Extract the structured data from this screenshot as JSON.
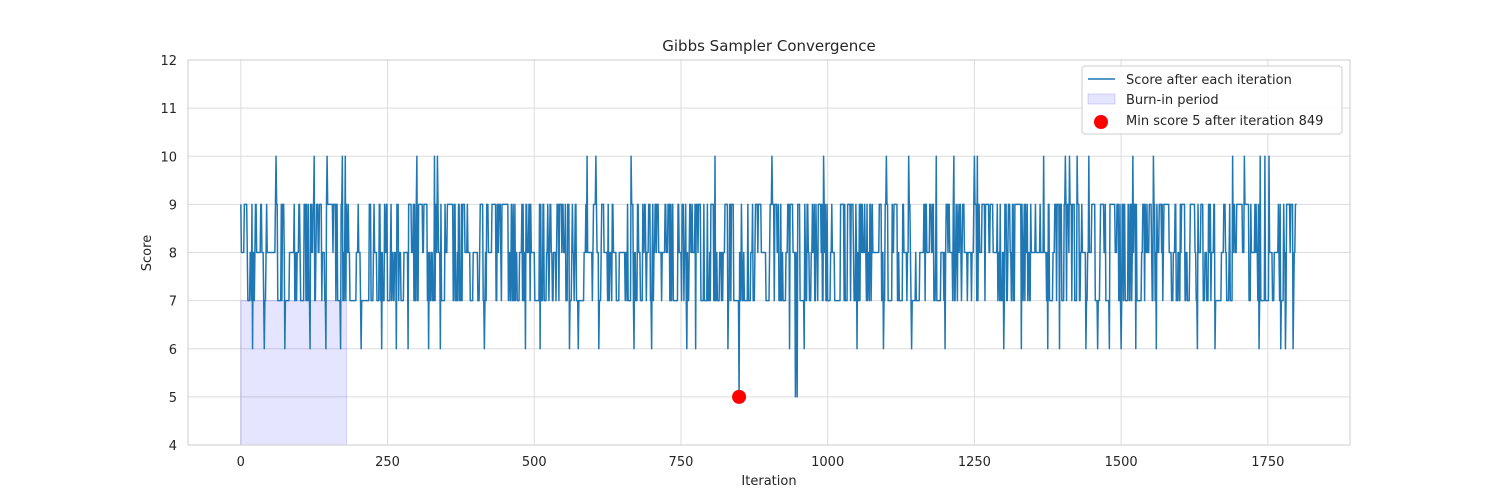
{
  "chart_data": {
    "type": "line",
    "title": "Gibbs Sampler Convergence",
    "xlabel": "Iteration",
    "ylabel": "Score",
    "xlim": [
      -90,
      1890
    ],
    "ylim": [
      4,
      12
    ],
    "x_ticks": [
      0,
      250,
      500,
      750,
      1000,
      1250,
      1500,
      1750
    ],
    "y_ticks": [
      4,
      5,
      6,
      7,
      8,
      9,
      10,
      11,
      12
    ],
    "grid": true,
    "legend_position": "top-right",
    "n_iterations": 1800,
    "series": [
      {
        "name": "Score after each iteration",
        "color": "#1f77b4",
        "baseline_values": [
          7,
          8,
          9
        ],
        "spikes": [
          {
            "x": 60,
            "y": 10
          },
          {
            "x": 125,
            "y": 10
          },
          {
            "x": 147,
            "y": 10
          },
          {
            "x": 173,
            "y": 10
          },
          {
            "x": 178,
            "y": 10
          },
          {
            "x": 300,
            "y": 10
          },
          {
            "x": 330,
            "y": 10
          },
          {
            "x": 335,
            "y": 10
          },
          {
            "x": 560,
            "y": 10
          },
          {
            "x": 590,
            "y": 10
          },
          {
            "x": 605,
            "y": 10
          },
          {
            "x": 665,
            "y": 10
          },
          {
            "x": 700,
            "y": 10
          },
          {
            "x": 808,
            "y": 10
          },
          {
            "x": 905,
            "y": 10
          },
          {
            "x": 993,
            "y": 10
          },
          {
            "x": 1100,
            "y": 10
          },
          {
            "x": 1138,
            "y": 10
          },
          {
            "x": 1185,
            "y": 10
          },
          {
            "x": 1215,
            "y": 10
          },
          {
            "x": 1250,
            "y": 10
          },
          {
            "x": 1255,
            "y": 10
          },
          {
            "x": 1330,
            "y": 10
          },
          {
            "x": 1368,
            "y": 10
          },
          {
            "x": 1405,
            "y": 10
          },
          {
            "x": 1412,
            "y": 10
          },
          {
            "x": 1425,
            "y": 10
          },
          {
            "x": 1445,
            "y": 10
          },
          {
            "x": 1520,
            "y": 10
          },
          {
            "x": 1555,
            "y": 10
          },
          {
            "x": 1690,
            "y": 10
          },
          {
            "x": 1710,
            "y": 10
          },
          {
            "x": 1737,
            "y": 10
          },
          {
            "x": 1745,
            "y": 10
          },
          {
            "x": 1752,
            "y": 10
          },
          {
            "x": 20,
            "y": 6
          },
          {
            "x": 40,
            "y": 6
          },
          {
            "x": 75,
            "y": 6
          },
          {
            "x": 118,
            "y": 6
          },
          {
            "x": 145,
            "y": 6
          },
          {
            "x": 170,
            "y": 6
          },
          {
            "x": 205,
            "y": 6
          },
          {
            "x": 240,
            "y": 6
          },
          {
            "x": 265,
            "y": 6
          },
          {
            "x": 285,
            "y": 6
          },
          {
            "x": 320,
            "y": 6
          },
          {
            "x": 340,
            "y": 6
          },
          {
            "x": 415,
            "y": 6
          },
          {
            "x": 485,
            "y": 6
          },
          {
            "x": 510,
            "y": 6
          },
          {
            "x": 560,
            "y": 6
          },
          {
            "x": 575,
            "y": 6
          },
          {
            "x": 610,
            "y": 6
          },
          {
            "x": 670,
            "y": 6
          },
          {
            "x": 700,
            "y": 6
          },
          {
            "x": 760,
            "y": 6
          },
          {
            "x": 775,
            "y": 6
          },
          {
            "x": 830,
            "y": 6
          },
          {
            "x": 935,
            "y": 6
          },
          {
            "x": 960,
            "y": 6
          },
          {
            "x": 1050,
            "y": 6
          },
          {
            "x": 1095,
            "y": 6
          },
          {
            "x": 1143,
            "y": 6
          },
          {
            "x": 1200,
            "y": 6
          },
          {
            "x": 1300,
            "y": 6
          },
          {
            "x": 1330,
            "y": 6
          },
          {
            "x": 1375,
            "y": 6
          },
          {
            "x": 1395,
            "y": 6
          },
          {
            "x": 1440,
            "y": 6
          },
          {
            "x": 1460,
            "y": 6
          },
          {
            "x": 1480,
            "y": 6
          },
          {
            "x": 1500,
            "y": 6
          },
          {
            "x": 1525,
            "y": 6
          },
          {
            "x": 1560,
            "y": 6
          },
          {
            "x": 1630,
            "y": 6
          },
          {
            "x": 1660,
            "y": 6
          },
          {
            "x": 1735,
            "y": 6
          },
          {
            "x": 1772,
            "y": 6
          },
          {
            "x": 1780,
            "y": 6
          },
          {
            "x": 1793,
            "y": 6
          },
          {
            "x": 849,
            "y": 5
          },
          {
            "x": 945,
            "y": 5
          },
          {
            "x": 948,
            "y": 5
          }
        ]
      }
    ],
    "burn_in": {
      "name": "Burn-in period",
      "x_start": 0,
      "x_end": 180,
      "y_top": 7,
      "color": "#0000ff"
    },
    "min_point": {
      "name": "Min score 5 after iteration 849",
      "x": 849,
      "y": 5,
      "color": "#ff0000"
    }
  }
}
